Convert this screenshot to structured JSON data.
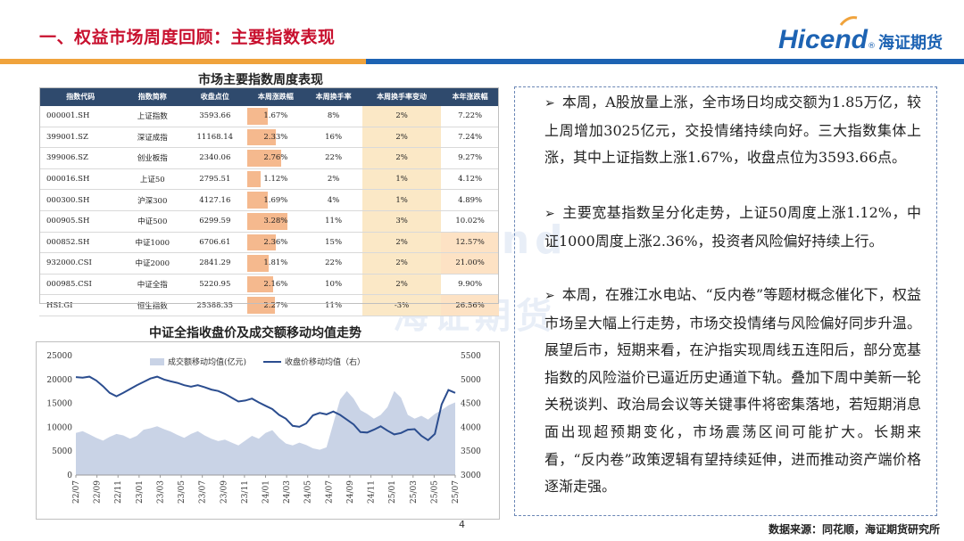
{
  "header": {
    "title": "一、权益市场周度回顾：主要指数表现",
    "logo_en": "Hicend",
    "logo_reg": "®",
    "logo_cn": "海证期货"
  },
  "table": {
    "title": "市场主要指数周度表现",
    "headers": [
      "指数代码",
      "指数简称",
      "收盘点位",
      "本周涨跌幅",
      "本周换手率",
      "本周换手率变动",
      "本年涨跌幅"
    ],
    "rows": [
      [
        "000001.SH",
        "上证指数",
        "3593.66",
        "1.67%",
        "8%",
        "2%",
        "7.22%"
      ],
      [
        "399001.SZ",
        "深证成指",
        "11168.14",
        "2.33%",
        "16%",
        "2%",
        "7.24%"
      ],
      [
        "399006.SZ",
        "创业板指",
        "2340.06",
        "2.76%",
        "22%",
        "2%",
        "9.27%"
      ],
      [
        "000016.SH",
        "上证50",
        "2795.51",
        "1.12%",
        "2%",
        "1%",
        "4.12%"
      ],
      [
        "000300.SH",
        "沪深300",
        "4127.16",
        "1.69%",
        "4%",
        "1%",
        "4.89%"
      ],
      [
        "000905.SH",
        "中证500",
        "6299.59",
        "3.28%",
        "11%",
        "3%",
        "10.02%"
      ],
      [
        "000852.SH",
        "中证1000",
        "6706.61",
        "2.36%",
        "15%",
        "2%",
        "12.57%"
      ],
      [
        "932000.CSI",
        "中证2000",
        "2841.29",
        "1.81%",
        "22%",
        "2%",
        "21.00%"
      ],
      [
        "000985.CSI",
        "中证全指",
        "5220.95",
        "2.16%",
        "10%",
        "2%",
        "9.90%"
      ],
      [
        "HSI.GI",
        "恒生指数",
        "25388.35",
        "2.27%",
        "11%",
        "-3%",
        "26.56%"
      ]
    ],
    "weekly_change_values": [
      1.67,
      2.33,
      2.76,
      1.12,
      1.69,
      3.28,
      2.36,
      1.81,
      2.16,
      2.27
    ]
  },
  "chart_data": {
    "type": "area",
    "title": "中证全指收盘价及成交额移动均值走势",
    "legend": [
      "成交额移动均值(亿元)",
      "收盘价移动均值（右）"
    ],
    "legend_position": "top",
    "y_left": {
      "min": 0,
      "max": 25000,
      "ticks": [
        "0",
        "5000",
        "10000",
        "15000",
        "20000",
        "25000"
      ]
    },
    "y_right": {
      "min": 3000,
      "max": 5500,
      "ticks": [
        "3000",
        "3500",
        "4000",
        "4500",
        "5000",
        "5500"
      ]
    },
    "x_ticks": [
      "22/07",
      "22/09",
      "22/11",
      "23/01",
      "23/03",
      "23/05",
      "23/07",
      "23/09",
      "23/11",
      "24/01",
      "24/03",
      "24/05",
      "24/07",
      "24/09",
      "24/11",
      "25/01",
      "25/03",
      "25/05",
      "25/07"
    ],
    "series": [
      {
        "name": "成交额移动均值(亿元)",
        "axis": "left",
        "values": [
          8800,
          9200,
          8500,
          7800,
          7200,
          8000,
          8600,
          8300,
          7600,
          8200,
          9500,
          9800,
          10200,
          9600,
          9100,
          8400,
          7800,
          8600,
          9200,
          8300,
          7600,
          7100,
          7400,
          6800,
          6200,
          7200,
          8200,
          7600,
          8800,
          9400,
          7800,
          6600,
          6200,
          6800,
          6300,
          5600,
          5300,
          5800,
          10800,
          15800,
          17600,
          16000,
          13600,
          12800,
          11800,
          12600,
          14200,
          17600,
          16200,
          12600,
          11800,
          12400,
          11600,
          12800,
          13600,
          14600,
          15200
        ]
      },
      {
        "name": "收盘价移动均值（右）",
        "axis": "right",
        "values": [
          5050,
          5040,
          5060,
          4980,
          4860,
          4720,
          4650,
          4720,
          4800,
          4880,
          4950,
          5020,
          5060,
          5000,
          4960,
          4930,
          4880,
          4850,
          4880,
          4840,
          4790,
          4760,
          4700,
          4620,
          4540,
          4560,
          4600,
          4520,
          4450,
          4380,
          4260,
          4180,
          4030,
          4010,
          4080,
          4250,
          4300,
          4270,
          4330,
          4260,
          4160,
          4060,
          3900,
          3890,
          3950,
          4020,
          3930,
          3850,
          3880,
          3950,
          3960,
          3820,
          3730,
          3860,
          4480,
          4780,
          4720
        ]
      }
    ]
  },
  "commentary": {
    "bullet": "➢",
    "p1": "本周，A股放量上涨，全市场日均成交额为1.85万亿，较上周增加3025亿元，交投情绪持续向好。三大指数集体上涨，其中上证指数上涨1.67%，收盘点位为3593.66点。",
    "p2": "主要宽基指数呈分化走势，上证50周度上涨1.12%，中证1000周度上涨2.36%，投资者风险偏好持续上行。",
    "p3": "本周，在雅江水电站、“反内卷”等题材概念催化下，权益市场呈大幅上行走势，市场交投情绪与风险偏好同步升温。展望后市，短期来看，在沪指实现周线五连阳后，部分宽基指数的风险溢价已逼近历史通道下轨。叠加下周中美新一轮关税谈判、政治局会议等关键事件将密集落地，若短期消息面出现超预期变化，市场震荡区间可能扩大。长期来看，“反内卷”政策逻辑有望持续延伸，进而推动资产端价格逐渐走强。"
  },
  "footer": {
    "page": "4",
    "source": "数据来源：同花顺，海证期货研究所"
  },
  "colors": {
    "title_red": "#c8102e",
    "brand_blue": "#1d63b3",
    "accent_orange": "#f0a33c",
    "table_header": "#2f4a6d",
    "bar_fill": "#f5b98e",
    "area_fill": "#c9d3e6",
    "line": "#2b4d8f"
  }
}
